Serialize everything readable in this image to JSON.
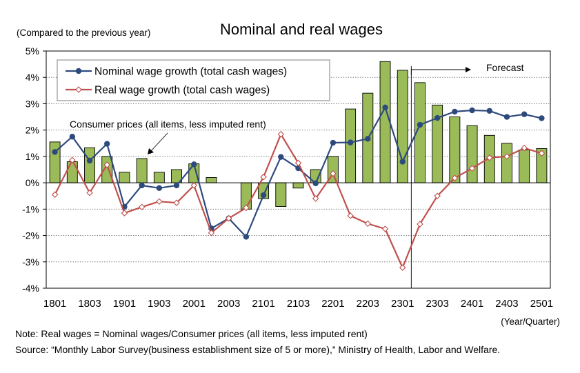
{
  "chart_data": {
    "type": "bar+line",
    "title": "Nominal and real wages",
    "ylabel": "(Compared to the previous year)",
    "xlabel": "(Year/Quarter)",
    "ylim": [
      -4,
      5
    ],
    "yticks": [
      -4,
      -3,
      -2,
      -1,
      0,
      1,
      2,
      3,
      4,
      5
    ],
    "ytick_labels": [
      "-4%",
      "-3%",
      "-2%",
      "-1%",
      "0%",
      "1%",
      "2%",
      "3%",
      "4%",
      "5%"
    ],
    "categories": [
      "1801",
      "1802",
      "1803",
      "1804",
      "1901",
      "1902",
      "1903",
      "1904",
      "2001",
      "2002",
      "2003",
      "2004",
      "2101",
      "2102",
      "2103",
      "2104",
      "2201",
      "2202",
      "2203",
      "2204",
      "2301",
      "2302",
      "2303",
      "2304",
      "2401",
      "2402",
      "2403",
      "2404",
      "2501"
    ],
    "xtick_labels": [
      "1801",
      "1803",
      "1901",
      "1903",
      "2001",
      "2003",
      "2101",
      "2103",
      "2201",
      "2203",
      "2301",
      "2303",
      "2401",
      "2403",
      "2501"
    ],
    "grid": "horizontal dotted",
    "legend_position": "top-left",
    "series": [
      {
        "name": "Consumer prices (all items, less imputed rent)",
        "kind": "bar",
        "color": "#9bbb59",
        "values": [
          1.55,
          0.8,
          1.33,
          1.0,
          0.4,
          0.92,
          0.4,
          0.5,
          0.72,
          0.2,
          0.0,
          -1.0,
          -0.6,
          -0.9,
          -0.2,
          0.5,
          1.0,
          2.8,
          3.4,
          4.6,
          4.27,
          3.8,
          2.95,
          2.5,
          2.17,
          1.8,
          1.5,
          1.25,
          1.3
        ]
      },
      {
        "name": "Nominal wage growth (total cash wages)",
        "kind": "line",
        "marker": "circle",
        "color": "#2e4a7d",
        "values": [
          1.17,
          1.75,
          0.84,
          1.48,
          -0.91,
          -0.1,
          -0.2,
          -0.1,
          0.7,
          -1.73,
          -1.35,
          -2.05,
          -0.47,
          0.98,
          0.55,
          -0.02,
          1.52,
          1.53,
          1.67,
          2.86,
          0.8,
          2.2,
          2.46,
          2.7,
          2.75,
          2.73,
          2.5,
          2.6,
          2.45
        ]
      },
      {
        "name": "Real wage growth (total cash wages)",
        "kind": "line",
        "marker": "diamond-open",
        "color": "#c0504d",
        "values": [
          -0.45,
          0.86,
          -0.38,
          0.68,
          -1.15,
          -0.92,
          -0.71,
          -0.76,
          -0.1,
          -1.9,
          -1.35,
          -0.95,
          0.22,
          1.84,
          0.75,
          -0.6,
          0.35,
          -1.25,
          -1.55,
          -1.75,
          -3.22,
          -1.57,
          -0.5,
          0.18,
          0.55,
          0.95,
          1.0,
          1.32,
          1.12
        ]
      }
    ],
    "forecast_start_index": 21,
    "annotations": {
      "forecast": "Forecast",
      "cpi_label": "Consumer prices (all items, less imputed rent)"
    }
  },
  "notes": {
    "note": "Note: Real wages = Nominal wages/Consumer prices (all items, less imputed rent)",
    "source": "Source: “Monthly Labor Survey(business establishment size of 5 or more),” Ministry of Health, Labor and Welfare."
  },
  "colors": {
    "grid": "#7f7f7f",
    "axis": "#000000",
    "legend_border": "#7f7f7f"
  }
}
